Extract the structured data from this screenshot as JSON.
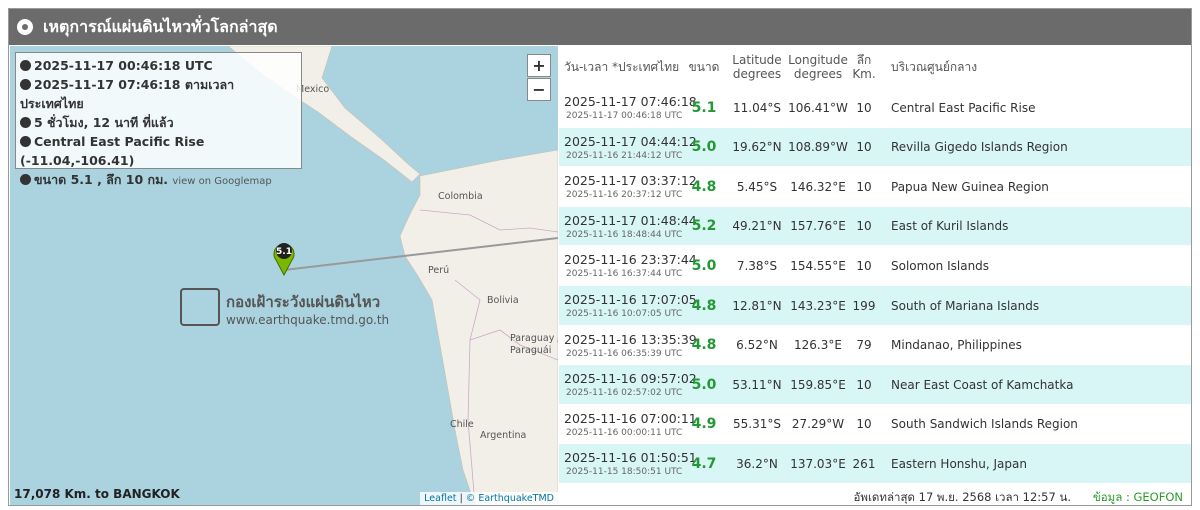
{
  "header": {
    "title": "เหตุการณ์แผ่นดินไหวทั่วโลกล่าสุด"
  },
  "map": {
    "info": [
      "2025-11-17 00:46:18 UTC",
      "2025-11-17 07:46:18 ตามเวลาประเทศไทย",
      "5 ชั่วโมง, 12 นาที ที่แล้ว",
      "Central East Pacific Rise (-11.04,-106.41)",
      "ขนาด 5.1 , ลึก 10 กม."
    ],
    "googlemap": "view on Googlemap",
    "zoom_in": "+",
    "zoom_out": "−",
    "labels": [
      "Mexico",
      "Colombia",
      "Perú",
      "Bolivia",
      "Paraguay /",
      "Paraguái",
      "Chile",
      "Argentina"
    ],
    "marker": "5.1",
    "logo": {
      "title": "กองเฝ้าระวังแผ่นดินไหว",
      "url": "www.earthquake.tmd.go.th"
    },
    "distance": "17,078 Km. to BANGKOK",
    "attribution": {
      "leaflet": "Leaflet",
      "separator": "|",
      "source": "© EarthquakeTMD"
    }
  },
  "table": {
    "headers": [
      [
        "วัน-เวลา *ประเทศไทย"
      ],
      [
        "ขนาด"
      ],
      [
        "Latitude",
        "degrees"
      ],
      [
        "Longitude",
        "degrees"
      ],
      [
        "ลึก",
        "Km."
      ],
      [
        "บริเวณศูนย์กลาง"
      ]
    ],
    "rows": [
      [
        "2025-11-17 07:46:18",
        "2025-11-17 00:46:18 UTC",
        "5.1",
        "11.04°S",
        "106.41°W",
        10,
        "Central East Pacific Rise"
      ],
      [
        "2025-11-17 04:44:12",
        "2025-11-16 21:44:12 UTC",
        "5.0",
        "19.62°N",
        "108.89°W",
        10,
        "Revilla Gigedo Islands Region"
      ],
      [
        "2025-11-17 03:37:12",
        "2025-11-16 20:37:12 UTC",
        "4.8",
        "5.45°S",
        "146.32°E",
        10,
        "Papua New Guinea Region"
      ],
      [
        "2025-11-17 01:48:44",
        "2025-11-16 18:48:44 UTC",
        "5.2",
        "49.21°N",
        "157.76°E",
        10,
        "East of Kuril Islands"
      ],
      [
        "2025-11-16 23:37:44",
        "2025-11-16 16:37:44 UTC",
        "5.0",
        "7.38°S",
        "154.55°E",
        10,
        "Solomon Islands"
      ],
      [
        "2025-11-16 17:07:05",
        "2025-11-16 10:07:05 UTC",
        "4.8",
        "12.81°N",
        "143.23°E",
        199,
        "South of Mariana Islands"
      ],
      [
        "2025-11-16 13:35:39",
        "2025-11-16 06:35:39 UTC",
        "4.8",
        "6.52°N",
        "126.3°E",
        79,
        "Mindanao, Philippines"
      ],
      [
        "2025-11-16 09:57:02",
        "2025-11-16 02:57:02 UTC",
        "5.0",
        "53.11°N",
        "159.85°E",
        10,
        "Near East Coast of Kamchatka"
      ],
      [
        "2025-11-16 07:00:11",
        "2025-11-16 00:00:11 UTC",
        "4.9",
        "55.31°S",
        "27.29°W",
        10,
        "South Sandwich Islands Region"
      ],
      [
        "2025-11-16 01:50:51",
        "2025-11-15 18:50:51 UTC",
        "4.7",
        "36.2°N",
        "137.03°E",
        261,
        "Eastern Honshu, Japan"
      ]
    ]
  },
  "footer": {
    "updated": "อัพเดทล่าสุด 17 พ.ย. 2568 เวลา 12:57 น.",
    "source": "ข้อมูล : GEOFON"
  }
}
